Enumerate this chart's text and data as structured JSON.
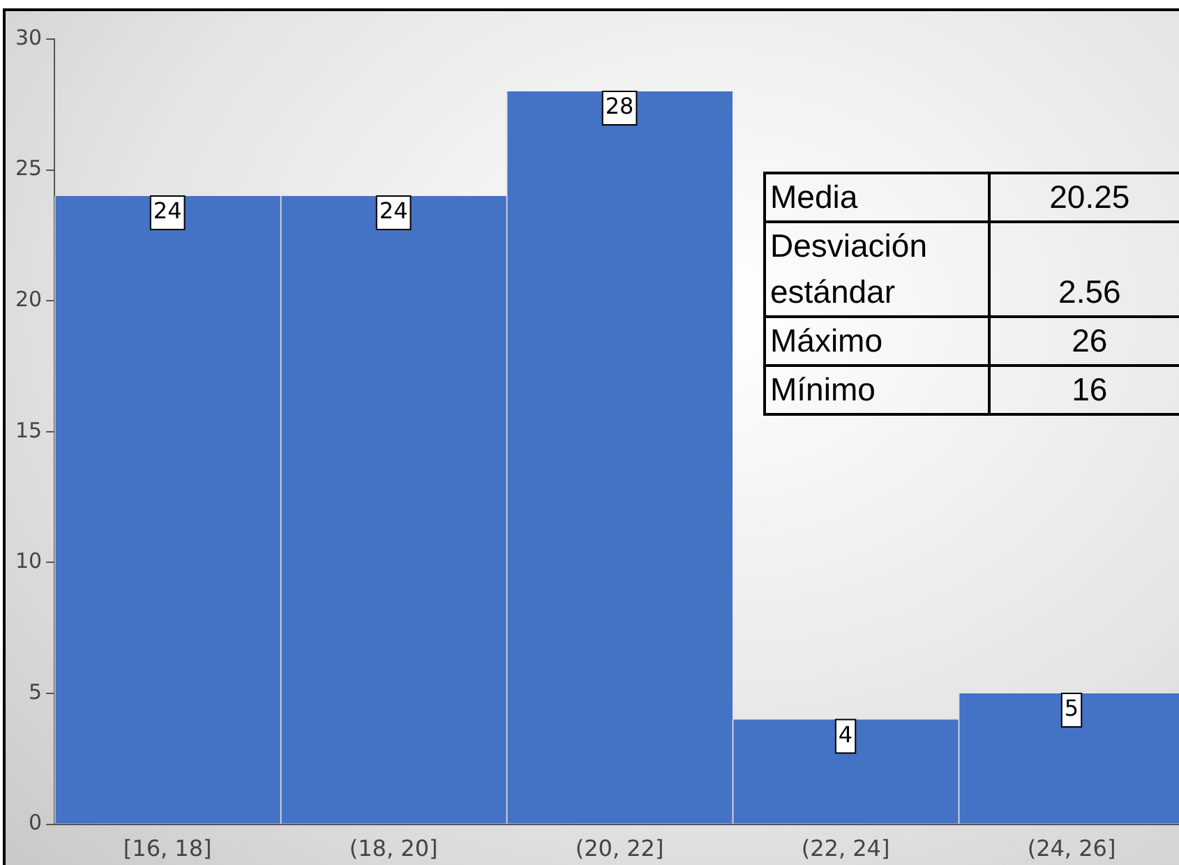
{
  "chart_data": {
    "type": "bar",
    "categories": [
      "[16, 18]",
      "(18, 20]",
      "(20, 22]",
      "(22, 24]",
      "(24, 26]"
    ],
    "values": [
      24,
      24,
      28,
      4,
      5
    ],
    "color": "#4472c4",
    "ylim": [
      0,
      30
    ],
    "yticks": [
      0,
      5,
      10,
      15,
      20,
      25,
      30
    ],
    "grid": false,
    "legend": false,
    "data_labels": true,
    "annotations": [
      "Media",
      "20.25",
      "Desviación estándar",
      "2.56",
      "Máximo",
      "26",
      "Mínimo",
      "16"
    ]
  }
}
